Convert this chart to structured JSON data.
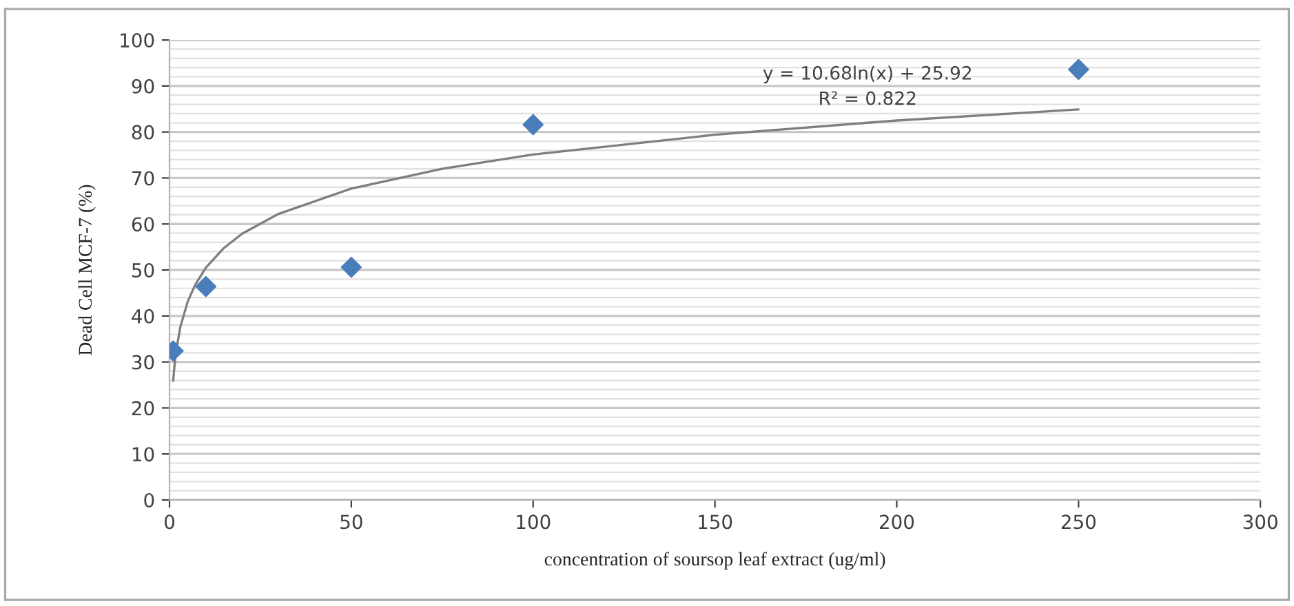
{
  "chart_data": {
    "type": "scatter",
    "xlabel": "concentration of soursop leaf extract (ug/ml)",
    "ylabel": "Dead Cell MCF-7 (%)",
    "series": [
      {
        "color": "#4a7ebb",
        "marker": "diamond",
        "x": [
          1,
          10,
          50,
          100,
          250
        ],
        "values": [
          32.4,
          46.4,
          50.6,
          81.6,
          93.6
        ]
      },
      {
        "type": "line",
        "color": "#7f7f7f",
        "marker": "none",
        "line_style": "solid",
        "x": [
          1,
          1.5,
          2,
          3,
          5,
          7,
          10,
          15,
          20,
          30,
          50,
          75,
          100,
          150,
          200,
          250
        ],
        "values": [
          25.9,
          30.3,
          33.3,
          37.7,
          43.1,
          46.7,
          50.5,
          54.8,
          57.9,
          62.2,
          67.7,
          72.0,
          75.1,
          79.4,
          82.5,
          84.9
        ]
      }
    ],
    "annotations": [
      "y = 10.68ln(x) + 25.92",
      "R² = 0.822"
    ],
    "xlim": [
      0,
      300
    ],
    "xticks": [
      0,
      50,
      100,
      150,
      200,
      250,
      300
    ],
    "ylim": [
      0,
      100
    ],
    "yticks": [
      0,
      10,
      20,
      30,
      40,
      50,
      60,
      70,
      80,
      90,
      100
    ],
    "grid": "y",
    "legend": false
  }
}
